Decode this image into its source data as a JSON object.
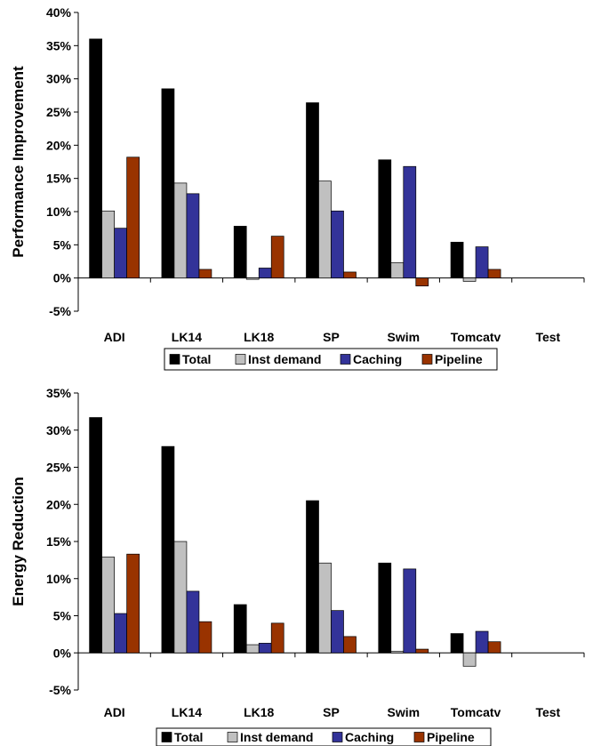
{
  "chart_data": [
    {
      "type": "bar",
      "title": "",
      "ylabel": "Performance Improvement",
      "xlabel": "",
      "ylim": [
        -5,
        40
      ],
      "y_ticks": [
        -5,
        0,
        5,
        10,
        15,
        20,
        25,
        30,
        35,
        40
      ],
      "tick_suffix": "%",
      "grid": false,
      "legend_position": "bottom",
      "categories": [
        "ADI",
        "LK14",
        "LK18",
        "SP",
        "Swim",
        "Tomcatv",
        "Test"
      ],
      "series": [
        {
          "name": "Total",
          "color": "#000000",
          "values": [
            36.0,
            28.5,
            7.8,
            26.4,
            17.8,
            5.4,
            0
          ]
        },
        {
          "name": "Inst demand",
          "color": "#c0c0c0",
          "values": [
            10.1,
            14.3,
            -0.2,
            14.6,
            2.3,
            -0.5,
            0
          ]
        },
        {
          "name": "Caching",
          "color": "#333399",
          "values": [
            7.5,
            12.7,
            1.5,
            10.1,
            16.8,
            4.7,
            0
          ]
        },
        {
          "name": "Pipeline",
          "color": "#993300",
          "values": [
            18.2,
            1.3,
            6.3,
            0.9,
            -1.2,
            1.3,
            0
          ]
        }
      ]
    },
    {
      "type": "bar",
      "title": "",
      "ylabel": "Energy Reduction",
      "xlabel": "",
      "ylim": [
        -5,
        35
      ],
      "y_ticks": [
        -5,
        0,
        5,
        10,
        15,
        20,
        25,
        30,
        35
      ],
      "tick_suffix": "%",
      "grid": false,
      "legend_position": "bottom",
      "categories": [
        "ADI",
        "LK14",
        "LK18",
        "SP",
        "Swim",
        "Tomcatv",
        "Test"
      ],
      "series": [
        {
          "name": "Total",
          "color": "#000000",
          "values": [
            31.7,
            27.8,
            6.5,
            20.5,
            12.1,
            2.6,
            0
          ]
        },
        {
          "name": "Inst demand",
          "color": "#c0c0c0",
          "values": [
            12.9,
            15.0,
            1.1,
            12.1,
            0.2,
            -1.8,
            0
          ]
        },
        {
          "name": "Caching",
          "color": "#333399",
          "values": [
            5.3,
            8.3,
            1.3,
            5.7,
            11.3,
            2.9,
            0
          ]
        },
        {
          "name": "Pipeline",
          "color": "#993300",
          "values": [
            13.3,
            4.2,
            4.0,
            2.2,
            0.5,
            1.5,
            0
          ]
        }
      ]
    }
  ]
}
